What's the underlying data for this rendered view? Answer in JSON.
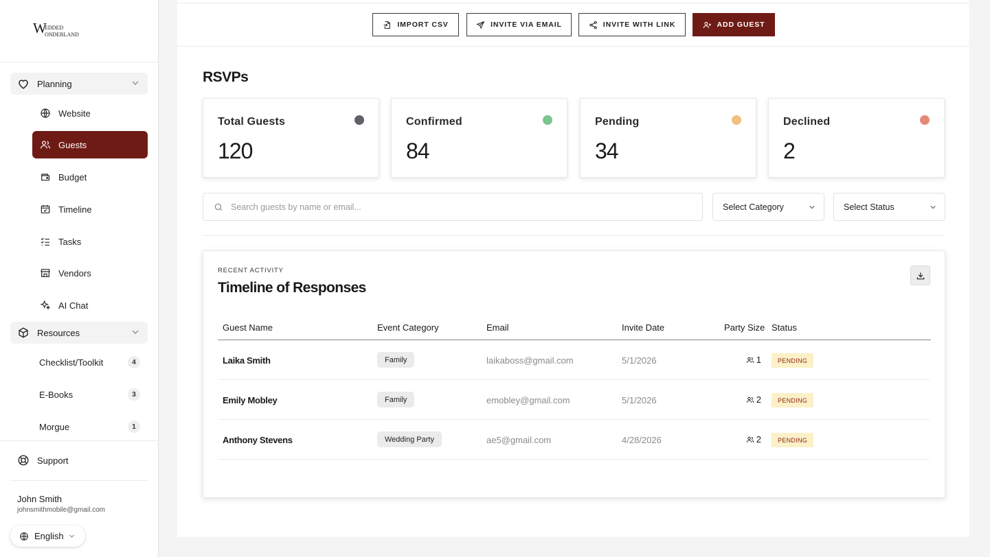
{
  "brand": {
    "logo_text": "WEDDED WONDERLAND",
    "accent": "#6e1b16"
  },
  "sidebar": {
    "planning_label": "Planning",
    "nav": [
      {
        "label": "Website",
        "icon": "globe-icon"
      },
      {
        "label": "Guests",
        "icon": "users-icon",
        "active": true
      },
      {
        "label": "Budget",
        "icon": "wallet-icon"
      },
      {
        "label": "Timeline",
        "icon": "calendar-check-icon"
      },
      {
        "label": "Tasks",
        "icon": "checklist-icon"
      },
      {
        "label": "Vendors",
        "icon": "store-icon"
      },
      {
        "label": "AI Chat",
        "icon": "sparkles-icon"
      }
    ],
    "resources_label": "Resources",
    "resources": [
      {
        "label": "Checklist/Toolkit",
        "count": "4"
      },
      {
        "label": "E-Books",
        "count": "3"
      },
      {
        "label": "Morgue",
        "count": "1"
      }
    ],
    "support_label": "Support",
    "user": {
      "name": "John Smith",
      "email": "johnsmithmobile@gmail.com"
    },
    "language": "English"
  },
  "toolbar": {
    "import_label": "IMPORT CSV",
    "invite_email_label": "INVITE VIA EMAIL",
    "invite_link_label": "INVITE WITH LINK",
    "add_guest_label": "ADD GUEST"
  },
  "page": {
    "title": "RSVPs"
  },
  "stats": [
    {
      "label": "Total Guests",
      "value": "120",
      "color": "#5f6368"
    },
    {
      "label": "Confirmed",
      "value": "84",
      "color": "#7cc48d"
    },
    {
      "label": "Pending",
      "value": "34",
      "color": "#f0c27d"
    },
    {
      "label": "Declined",
      "value": "2",
      "color": "#e58a76"
    }
  ],
  "filters": {
    "search_placeholder": "Search guests by name or email...",
    "category": "Select Category",
    "status": "Select Status"
  },
  "activity": {
    "eyebrow": "RECENT ACTIVITY",
    "title": "Timeline of Responses",
    "columns": [
      "Guest Name",
      "Event Category",
      "Email",
      "Invite Date",
      "Party Size",
      "Status"
    ],
    "rows": [
      {
        "name": "Laika Smith",
        "category": "Family",
        "email": "laikaboss@gmail.com",
        "date": "5/1/2026",
        "party": "1",
        "status": "PENDING"
      },
      {
        "name": "Emily Mobley",
        "category": "Family",
        "email": "emobley@gmail.com",
        "date": "5/1/2026",
        "party": "2",
        "status": "PENDING"
      },
      {
        "name": "Anthony Stevens",
        "category": "Wedding Party",
        "email": "ae5@gmail.com",
        "date": "4/28/2026",
        "party": "2",
        "status": "PENDING"
      }
    ]
  }
}
